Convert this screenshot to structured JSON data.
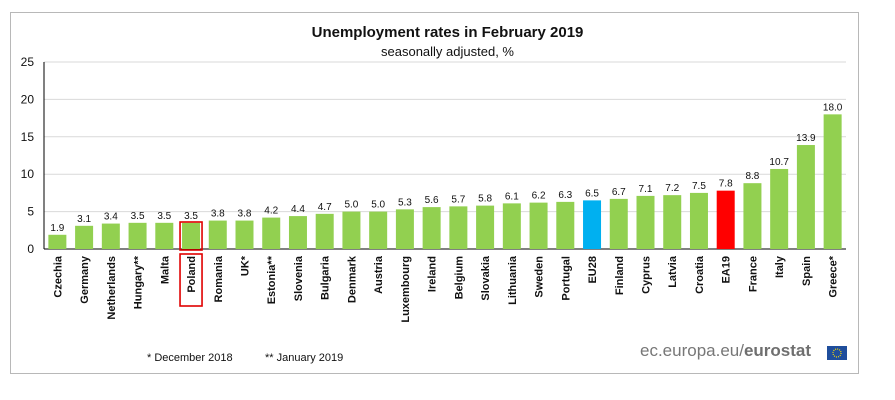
{
  "chart_data": {
    "type": "bar",
    "title": "Unemployment rates in February 2019",
    "subtitle": "seasonally adjusted, %",
    "categories": [
      "Czechia",
      "Germany",
      "Netherlands",
      "Hungary**",
      "Malta",
      "Poland",
      "Romania",
      "UK*",
      "Estonia**",
      "Slovenia",
      "Bulgaria",
      "Denmark",
      "Austria",
      "Luxembourg",
      "Ireland",
      "Belgium",
      "Slovakia",
      "Lithuania",
      "Sweden",
      "Portugal",
      "EU28",
      "Finland",
      "Cyprus",
      "Latvia",
      "Croatia",
      "EA19",
      "France",
      "Italy",
      "Spain",
      "Greece*"
    ],
    "values": [
      1.9,
      3.1,
      3.4,
      3.5,
      3.5,
      3.5,
      3.8,
      3.8,
      4.2,
      4.4,
      4.7,
      5.0,
      5.0,
      5.3,
      5.6,
      5.7,
      5.8,
      6.1,
      6.2,
      6.3,
      6.5,
      6.7,
      7.1,
      7.2,
      7.5,
      7.8,
      8.8,
      10.7,
      13.9,
      18.0
    ],
    "value_labels": [
      "1.9",
      "3.1",
      "3.4",
      "3.5",
      "3.5",
      "3.5",
      "3.8",
      "3.8",
      "4.2",
      "4.4",
      "4.7",
      "5.0",
      "5.0",
      "5.3",
      "5.6",
      "5.7",
      "5.8",
      "6.1",
      "6.2",
      "6.3",
      "6.5",
      "6.7",
      "7.1",
      "7.2",
      "7.5",
      "7.8",
      "8.8",
      "10.7",
      "13.9",
      "18.0"
    ],
    "ylim": [
      0,
      25
    ],
    "yticks": [
      "0",
      "5",
      "10",
      "15",
      "20",
      "25"
    ],
    "grid": true,
    "colors": {
      "default": "#92d050",
      "EU28": "#00b0f0",
      "EA19": "#ff0000",
      "highlight_outline": "#e00000"
    },
    "highlighted": "Poland"
  },
  "footnotes": {
    "first": "* December 2018",
    "second": "** January 2019"
  },
  "source": {
    "prefix": "ec.europa.eu/",
    "brand": "eurostat"
  }
}
